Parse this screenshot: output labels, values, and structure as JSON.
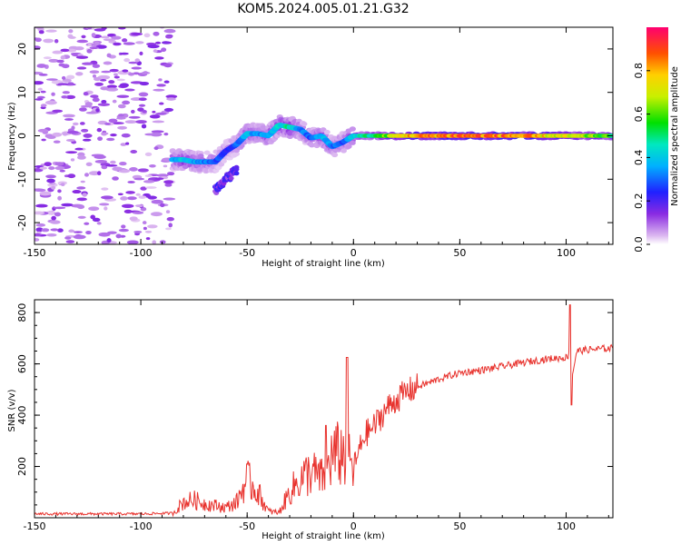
{
  "figure_title": "KOM5.2024.005.01.21.G32",
  "chart_data": [
    {
      "type": "heatmap",
      "name": "spectrogram",
      "xlabel": "Height of straight line (km)",
      "ylabel": "Frequency (Hz)",
      "xlim": [
        -150,
        122
      ],
      "ylim": [
        -25,
        25
      ],
      "x_ticks": [
        -150,
        -100,
        -50,
        0,
        50,
        100
      ],
      "y_ticks": [
        -20,
        -10,
        0,
        10,
        20
      ],
      "colorbar": {
        "label": "Normalized spectral amplitude",
        "range": [
          0,
          1
        ],
        "ticks": [
          "0.0",
          "0.2",
          "0.4",
          "0.6",
          "0.8"
        ]
      },
      "ridge": {
        "description": "frequency of peak amplitude vs height",
        "x": [
          -85,
          -80,
          -75,
          -70,
          -65,
          -60,
          -55,
          -50,
          -45,
          -40,
          -35,
          -30,
          -25,
          -20,
          -15,
          -10,
          -5,
          0,
          10,
          25,
          50,
          75,
          100,
          122
        ],
        "y": [
          -5.5,
          -5.5,
          -6,
          -6,
          -6,
          -3.5,
          -2,
          0.5,
          0.5,
          0,
          2.5,
          2,
          1.5,
          -0.5,
          0,
          -2.5,
          -1.5,
          0,
          0,
          0,
          0,
          0,
          0,
          0
        ],
        "amplitude": [
          0.35,
          0.45,
          0.4,
          0.35,
          0.3,
          0.25,
          0.3,
          0.4,
          0.35,
          0.4,
          0.45,
          0.5,
          0.35,
          0.3,
          0.4,
          0.35,
          0.3,
          0.45,
          0.55,
          0.85,
          0.95,
          0.9,
          0.75,
          0.6
        ]
      },
      "branch": {
        "x": [
          -65,
          -60,
          -55
        ],
        "y": [
          -12.5,
          -10,
          -8
        ]
      },
      "noise_region_x": [
        -150,
        -85
      ]
    },
    {
      "type": "line",
      "name": "snr",
      "xlabel": "Height of straight line (km)",
      "ylabel": "SNR (v/v)",
      "xlim": [
        -150,
        122
      ],
      "ylim": [
        0,
        850
      ],
      "x_ticks": [
        -150,
        -100,
        -50,
        0,
        50,
        100
      ],
      "y_ticks": [
        200,
        400,
        600,
        800
      ],
      "color": "#e8322d",
      "x": [
        -150,
        -120,
        -100,
        -85,
        -80,
        -75,
        -70,
        -60,
        -55,
        -50,
        -45,
        -40,
        -35,
        -30,
        -25,
        -20,
        -15,
        -10,
        -5,
        0,
        5,
        10,
        15,
        20,
        25,
        30,
        40,
        50,
        60,
        70,
        80,
        90,
        95,
        100,
        102,
        103,
        105,
        110,
        115,
        120,
        122
      ],
      "y": [
        15,
        15,
        15,
        18,
        60,
        70,
        55,
        40,
        60,
        150,
        100,
        25,
        20,
        100,
        150,
        180,
        150,
        240,
        250,
        190,
        320,
        360,
        420,
        460,
        490,
        510,
        540,
        565,
        575,
        590,
        605,
        618,
        622,
        625,
        640,
        560,
        650,
        655,
        658,
        660,
        662
      ],
      "spikes": [
        {
          "x": -3,
          "y": 625
        },
        {
          "x": -13,
          "y": 360
        },
        {
          "x": 102,
          "y": 830
        },
        {
          "x": 102.5,
          "y": 440
        }
      ]
    }
  ]
}
